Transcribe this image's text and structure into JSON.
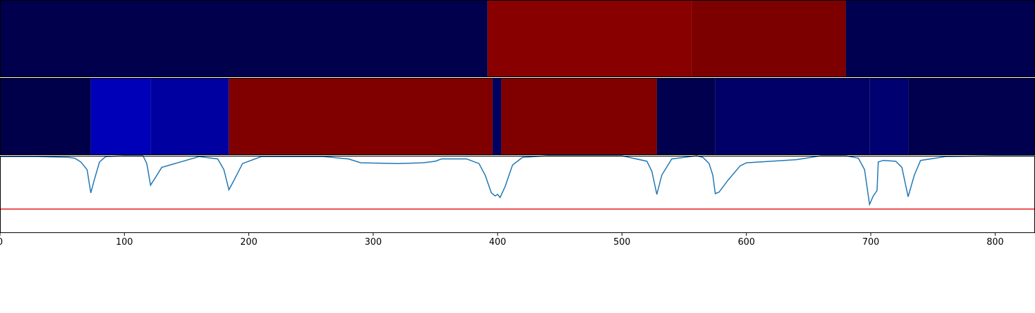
{
  "chart_data": {
    "type": "line",
    "xlim": [
      0,
      832
    ],
    "xticks": [
      0,
      100,
      200,
      300,
      400,
      500,
      600,
      700,
      800
    ],
    "ylim": [
      0,
      1
    ],
    "heatmaps": [
      {
        "segments": [
          {
            "start": 0,
            "end": 392,
            "color": "#00004c"
          },
          {
            "start": 392,
            "end": 556,
            "color": "#880000"
          },
          {
            "start": 556,
            "end": 680,
            "color": "#7c0000"
          },
          {
            "start": 680,
            "end": 832,
            "color": "#000050"
          }
        ]
      },
      {
        "segments": [
          {
            "start": 0,
            "end": 73,
            "color": "#00004a"
          },
          {
            "start": 73,
            "end": 121,
            "color": "#0000b8"
          },
          {
            "start": 121,
            "end": 184,
            "color": "#0000a0"
          },
          {
            "start": 184,
            "end": 396,
            "color": "#800000"
          },
          {
            "start": 396,
            "end": 403,
            "color": "#000060"
          },
          {
            "start": 403,
            "end": 528,
            "color": "#800000"
          },
          {
            "start": 528,
            "end": 575,
            "color": "#00004e"
          },
          {
            "start": 575,
            "end": 699,
            "color": "#000068"
          },
          {
            "start": 699,
            "end": 730,
            "color": "#000070"
          },
          {
            "start": 730,
            "end": 832,
            "color": "#00004f"
          }
        ]
      }
    ],
    "x": [
      0,
      30,
      55,
      60,
      65,
      70,
      73,
      76,
      80,
      85,
      100,
      115,
      118,
      121,
      125,
      130,
      160,
      175,
      180,
      184,
      188,
      195,
      210,
      260,
      280,
      290,
      320,
      340,
      350,
      355,
      375,
      385,
      390,
      395,
      398,
      400,
      402,
      406,
      412,
      420,
      440,
      480,
      500,
      520,
      524,
      528,
      532,
      540,
      560,
      565,
      570,
      573,
      575,
      578,
      585,
      595,
      600,
      640,
      660,
      680,
      690,
      695,
      699,
      702,
      705,
      706,
      710,
      720,
      725,
      730,
      735,
      740,
      760,
      800,
      832
    ],
    "series": [
      {
        "color": "#1f77b4",
        "values": [
          0.99,
          0.99,
          0.98,
          0.97,
          0.92,
          0.82,
          0.52,
          0.7,
          0.92,
          0.99,
          1.0,
          1.0,
          0.9,
          0.62,
          0.72,
          0.85,
          0.99,
          0.96,
          0.82,
          0.56,
          0.68,
          0.9,
          0.99,
          0.99,
          0.96,
          0.91,
          0.9,
          0.91,
          0.93,
          0.96,
          0.96,
          0.9,
          0.75,
          0.52,
          0.48,
          0.5,
          0.46,
          0.6,
          0.88,
          0.98,
          1.0,
          1.0,
          1.0,
          0.93,
          0.8,
          0.5,
          0.75,
          0.96,
          1.0,
          0.98,
          0.9,
          0.75,
          0.51,
          0.53,
          0.68,
          0.87,
          0.91,
          0.95,
          1.0,
          1.0,
          0.97,
          0.82,
          0.37,
          0.48,
          0.55,
          0.92,
          0.94,
          0.93,
          0.85,
          0.47,
          0.75,
          0.94,
          0.99,
          1.0,
          1.0
        ]
      }
    ],
    "hline": 0.31,
    "hline_color": "#e41a1c"
  }
}
